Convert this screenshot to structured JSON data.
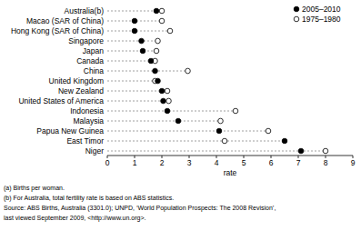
{
  "chart_data": {
    "type": "dot",
    "orientation": "horizontal",
    "x_label": "rate",
    "categories": [
      "Australia(b)",
      "Macao (SAR of China)",
      "Hong Kong (SAR of China)",
      "Singapore",
      "Japan",
      "Canada",
      "China",
      "United Kingdom",
      "New Zealand",
      "United States of America",
      "Indonesia",
      "Malaysia",
      "Papua New Guinea",
      "East Timor",
      "Niger"
    ],
    "series": [
      {
        "name": "2005–2010",
        "color": "#000000",
        "marker": "filled_circle",
        "values": [
          1.8,
          1.0,
          1.0,
          1.25,
          1.3,
          1.6,
          1.75,
          1.85,
          2.0,
          2.05,
          2.2,
          2.6,
          4.1,
          6.5,
          7.1
        ]
      },
      {
        "name": "1975–1980",
        "color": "#000000",
        "marker": "open_circle",
        "values": [
          2.0,
          2.0,
          2.3,
          1.85,
          1.8,
          1.75,
          2.95,
          1.75,
          2.2,
          2.25,
          4.7,
          4.15,
          5.9,
          4.3,
          8.0
        ]
      }
    ],
    "xlim": [
      0,
      9
    ],
    "xticks": [
      0,
      1,
      2,
      3,
      4,
      5,
      6,
      7,
      8,
      9
    ],
    "grid": false,
    "legend": "top-right",
    "notes": [
      "(a) Births per woman.",
      "(b) For Australia, total fertility rate is based on ABS statistics.",
      "Source: ABS Births, Australia (3301.0); UNPD, ‘World Population Prospects: The 2008 Revision’,",
      "last viewed September 2009, <http://www.un.org>."
    ]
  }
}
